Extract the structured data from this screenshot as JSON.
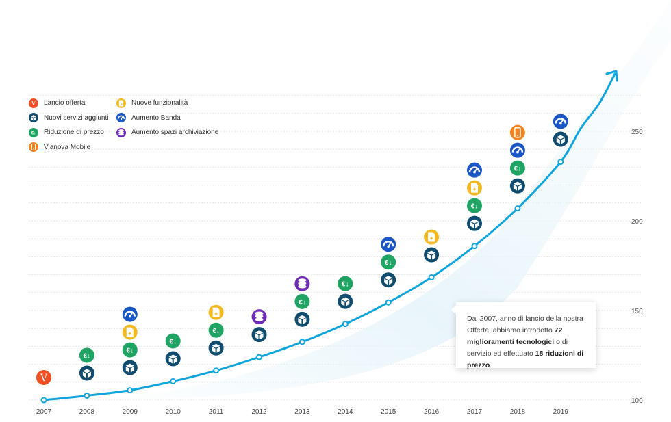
{
  "chart_data": {
    "type": "line",
    "title": "",
    "xlabel": "",
    "ylabel": "",
    "ylim": [
      100,
      260
    ],
    "y_ticks": [
      100,
      150,
      200,
      250
    ],
    "grid": true,
    "categories": [
      "2007",
      "2008",
      "2009",
      "2010",
      "2011",
      "2012",
      "2013",
      "2014",
      "2015",
      "2016",
      "2017",
      "2018",
      "2019"
    ],
    "series": [
      {
        "name": "Offerta",
        "values": [
          100,
          102.5,
          105.5,
          110.5,
          116.5,
          124,
          132.5,
          142.5,
          154.5,
          168.5,
          186,
          207,
          233
        ]
      }
    ],
    "events": [
      {
        "year": "2007",
        "types": [
          "lancio"
        ]
      },
      {
        "year": "2008",
        "types": [
          "servizi",
          "prezzo"
        ]
      },
      {
        "year": "2009",
        "types": [
          "servizi",
          "prezzo",
          "funzionalita",
          "banda"
        ]
      },
      {
        "year": "2010",
        "types": [
          "servizi",
          "prezzo"
        ]
      },
      {
        "year": "2011",
        "types": [
          "servizi",
          "prezzo",
          "funzionalita"
        ]
      },
      {
        "year": "2012",
        "types": [
          "servizi",
          "archiviazione"
        ]
      },
      {
        "year": "2013",
        "types": [
          "servizi",
          "prezzo",
          "archiviazione"
        ]
      },
      {
        "year": "2014",
        "types": [
          "servizi",
          "prezzo"
        ]
      },
      {
        "year": "2015",
        "types": [
          "servizi",
          "prezzo",
          "banda"
        ]
      },
      {
        "year": "2016",
        "types": [
          "servizi",
          "funzionalita"
        ]
      },
      {
        "year": "2017",
        "types": [
          "servizi",
          "prezzo",
          "funzionalita",
          "banda"
        ]
      },
      {
        "year": "2018",
        "types": [
          "servizi",
          "prezzo",
          "banda",
          "mobile"
        ]
      },
      {
        "year": "2019",
        "types": [
          "servizi",
          "banda"
        ]
      }
    ],
    "legend": [
      {
        "key": "lancio",
        "label": "Lancio offerta"
      },
      {
        "key": "servizi",
        "label": "Nuovi servizi aggiunti"
      },
      {
        "key": "prezzo",
        "label": "Riduzione di prezzo"
      },
      {
        "key": "mobile",
        "label": "Vianova Mobile"
      },
      {
        "key": "funzionalita",
        "label": "Nuove funzionalità"
      },
      {
        "key": "banda",
        "label": "Aumento Banda"
      },
      {
        "key": "archiviazione",
        "label": "Aumento spazi archiviazione"
      }
    ],
    "annotation": {
      "text_1": "Dal 2007, anno di lancio della nostra Offerta, abbiamo introdotto ",
      "bold_1": "72 miglioramenti tecnologici",
      "text_2": " o di servizio ed effettuato ",
      "bold_2": "18 riduzioni di prezzo",
      "text_3": "."
    }
  },
  "icons": {
    "lancio": {
      "name": "v-logo-icon",
      "color": "#f04e23",
      "glyph": "V"
    },
    "servizi": {
      "name": "cube-icon",
      "color": "#0f4c6e",
      "glyph": ""
    },
    "prezzo": {
      "name": "euro-down-icon",
      "color": "#1fa463",
      "glyph": "€↓"
    },
    "mobile": {
      "name": "smartphone-icon",
      "color": "#f58220",
      "glyph": ""
    },
    "funzionalita": {
      "name": "document-plus-icon",
      "color": "#f2b822",
      "glyph": ""
    },
    "banda": {
      "name": "speedometer-icon",
      "color": "#1a56c4",
      "glyph": ""
    },
    "archiviazione": {
      "name": "database-icon",
      "color": "#6e2cb5",
      "glyph": ""
    }
  },
  "colors": {
    "line": "#0ea5dc",
    "grid": "#e4e4e4",
    "text": "#555555"
  }
}
